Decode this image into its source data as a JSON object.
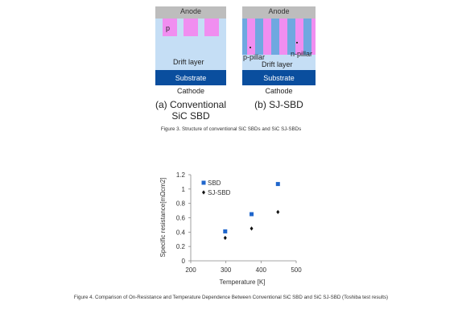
{
  "fig3": {
    "conventional": {
      "anode": "Anode",
      "p": "p",
      "drift": "Drift layer",
      "substrate": "Substrate",
      "cathode": "Cathode",
      "caption_line1": "(a) Conventional",
      "caption_line2": "SiC SBD"
    },
    "sj": {
      "anode": "Anode",
      "n_pillar": "n-pillar",
      "p_pillar": "p-pillar",
      "drift": "Drift layer",
      "substrate": "Substrate",
      "cathode": "Cathode",
      "caption": "(b) SJ-SBD"
    },
    "caption": "Figure 3. Structure of conventional SiC SBDs and SiC SJ-SBDs",
    "colors": {
      "anode": "#bdbdbd",
      "drift": "#c5def5",
      "p_region": "#f08ef0",
      "n_pillar": "#6fa8e0",
      "substrate": "#0a4e9e"
    }
  },
  "fig4": {
    "caption": "Figure 4. Comparison of On-Resistance and Temperature Dependence Between Conventional SiC SBD and SiC SJ-SBD (Toshiba test results)"
  },
  "chart_data": {
    "type": "scatter",
    "xlabel": "Temperature [K]",
    "ylabel": "Specific resistance[mΩcm2]",
    "xlim": [
      200,
      500
    ],
    "ylim": [
      0,
      1.2
    ],
    "xticks": [
      "200",
      "300",
      "400",
      "500"
    ],
    "yticks": [
      "0",
      "0.2",
      "0.4",
      "0.6",
      "0.8",
      "1",
      "1.2"
    ],
    "grid": false,
    "legend_position": "top-left",
    "series": [
      {
        "name": "SBD",
        "marker": "square",
        "color": "#1f66cc",
        "x": [
          298,
          373,
          448
        ],
        "y": [
          0.41,
          0.65,
          1.07
        ]
      },
      {
        "name": "SJ-SBD",
        "marker": "diamond",
        "color": "#111111",
        "x": [
          298,
          373,
          448
        ],
        "y": [
          0.32,
          0.45,
          0.68
        ]
      }
    ]
  }
}
